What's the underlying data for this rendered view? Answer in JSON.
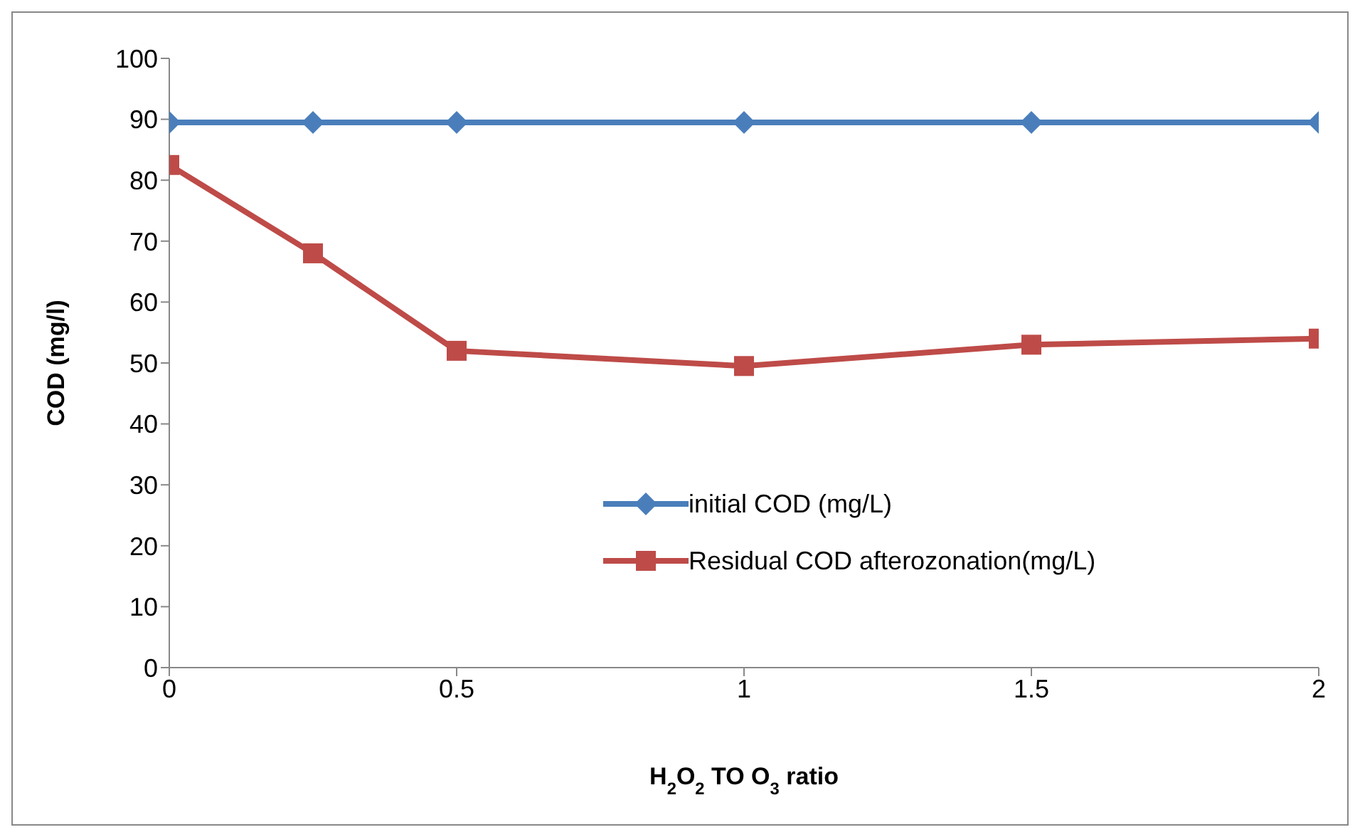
{
  "chart_data": {
    "type": "line",
    "xlabel": "H$_{2}$O$_{2}$ TO O$_{3}$ ratio",
    "ylabel": "COD (mg/l)",
    "x": [
      0,
      0.25,
      0.5,
      1,
      1.5,
      2
    ],
    "series": [
      {
        "name": "initial COD (mg/L)",
        "color": "#4a7ebb",
        "marker": "diamond",
        "values": [
          89.5,
          89.5,
          89.5,
          89.5,
          89.5,
          89.5
        ]
      },
      {
        "name": "Residual COD afterozonation(mg/L)",
        "color": "#be4b48",
        "marker": "square",
        "values": [
          82.5,
          68,
          52,
          49.5,
          53,
          54
        ]
      }
    ],
    "xlim": [
      0,
      2
    ],
    "xticks": [
      0,
      0.5,
      1,
      1.5,
      2
    ],
    "ylim": [
      0,
      100
    ],
    "yticks": [
      0,
      10,
      20,
      30,
      40,
      50,
      60,
      70,
      80,
      90,
      100
    ],
    "grid": false,
    "legend": "bottom right"
  }
}
